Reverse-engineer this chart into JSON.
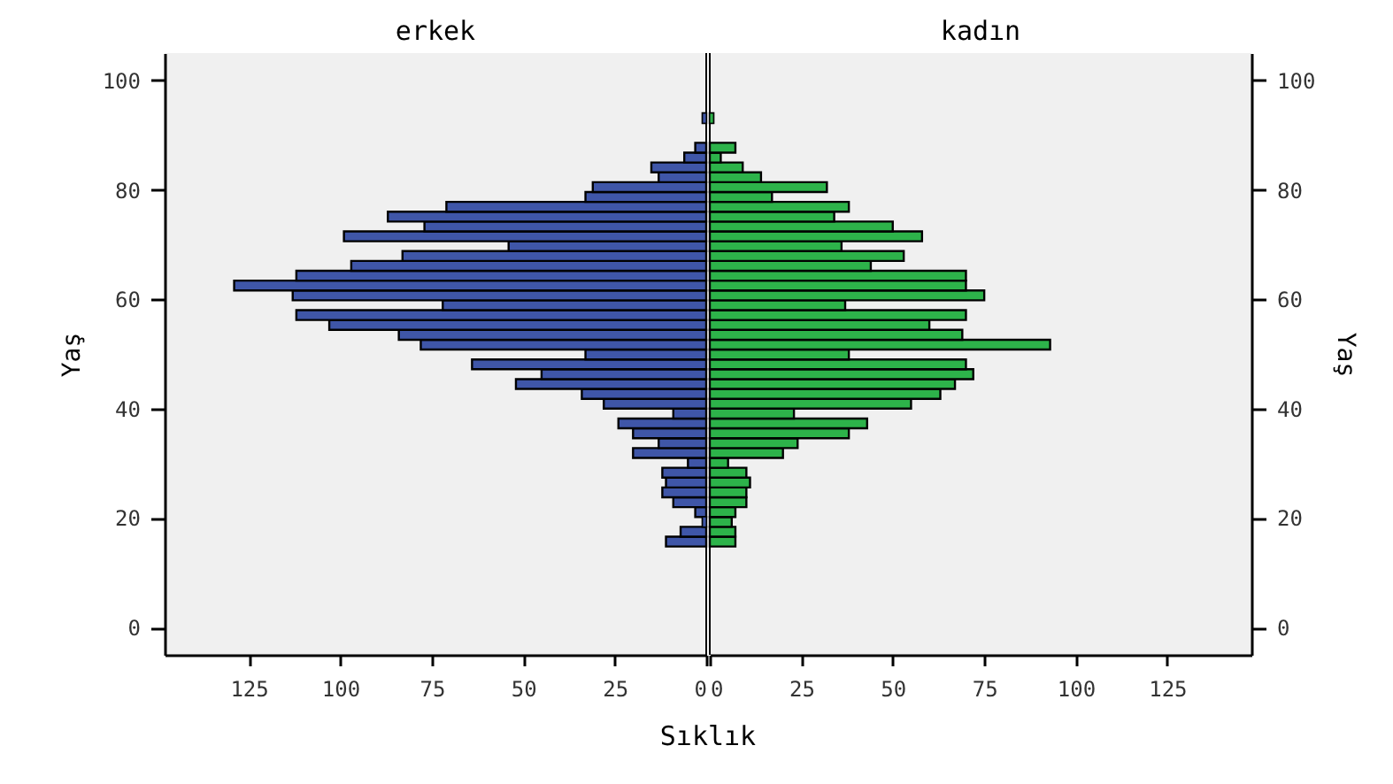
{
  "chart_data": [
    {
      "type": "histogram",
      "orientation": "horizontal",
      "title": "erkek",
      "xlabel": "Sıklık",
      "ylabel": "Yaş",
      "color": "#3f56a8",
      "bins": [
        14.8,
        16.6,
        18.4,
        20.2,
        22,
        23.8,
        25.6,
        27.4,
        29.2,
        31,
        32.8,
        34.6,
        36.4,
        38.2,
        40,
        41.8,
        43.6,
        45.4,
        47.2,
        49,
        50.8,
        52.6,
        54.4,
        56.2,
        58,
        59.8,
        61.6,
        63.4,
        65.2,
        67,
        68.8,
        70.6,
        72.4,
        74.2,
        76,
        77.8,
        79.6,
        81.4,
        83.2,
        85,
        86.8,
        88.6,
        90.4,
        92.2,
        94
      ],
      "values": [
        11,
        7,
        1,
        3,
        9,
        12,
        11,
        12,
        5,
        20,
        13,
        20,
        24,
        9,
        28,
        34,
        52,
        45,
        64,
        33,
        78,
        84,
        103,
        112,
        72,
        113,
        129,
        112,
        97,
        83,
        54,
        99,
        77,
        87,
        71,
        33,
        31,
        13,
        15,
        6,
        3,
        0,
        0,
        1
      ],
      "xlim": [
        148,
        0
      ],
      "xticks": [
        125,
        100,
        75,
        50,
        25,
        0
      ],
      "ylim": [
        -5,
        105
      ],
      "yticks": [
        0,
        20,
        40,
        60,
        80,
        100
      ],
      "grid": false
    },
    {
      "type": "histogram",
      "orientation": "horizontal",
      "title": "kadın",
      "ylabel": "Yaş",
      "color": "#2db34a",
      "bins": [
        14.8,
        16.6,
        18.4,
        20.2,
        22,
        23.8,
        25.6,
        27.4,
        29.2,
        31,
        32.8,
        34.6,
        36.4,
        38.2,
        40,
        41.8,
        43.6,
        45.4,
        47.2,
        49,
        50.8,
        52.6,
        54.4,
        56.2,
        58,
        59.8,
        61.6,
        63.4,
        65.2,
        67,
        68.8,
        70.6,
        72.4,
        74.2,
        76,
        77.8,
        79.6,
        81.4,
        83.2,
        85,
        86.8,
        88.6,
        90.4,
        92.2,
        94
      ],
      "values": [
        7,
        7,
        6,
        7,
        10,
        10,
        11,
        10,
        5,
        20,
        24,
        38,
        43,
        23,
        55,
        63,
        67,
        72,
        70,
        38,
        93,
        69,
        60,
        70,
        37,
        75,
        70,
        70,
        44,
        53,
        36,
        58,
        50,
        34,
        38,
        17,
        32,
        14,
        9,
        3,
        7,
        0,
        0,
        1
      ],
      "xlim": [
        0,
        148
      ],
      "xticks": [
        0,
        25,
        50,
        75,
        100,
        125
      ],
      "ylim": [
        -5,
        105
      ],
      "yticks": [
        0,
        20,
        40,
        60,
        80,
        100
      ],
      "grid": false
    }
  ]
}
